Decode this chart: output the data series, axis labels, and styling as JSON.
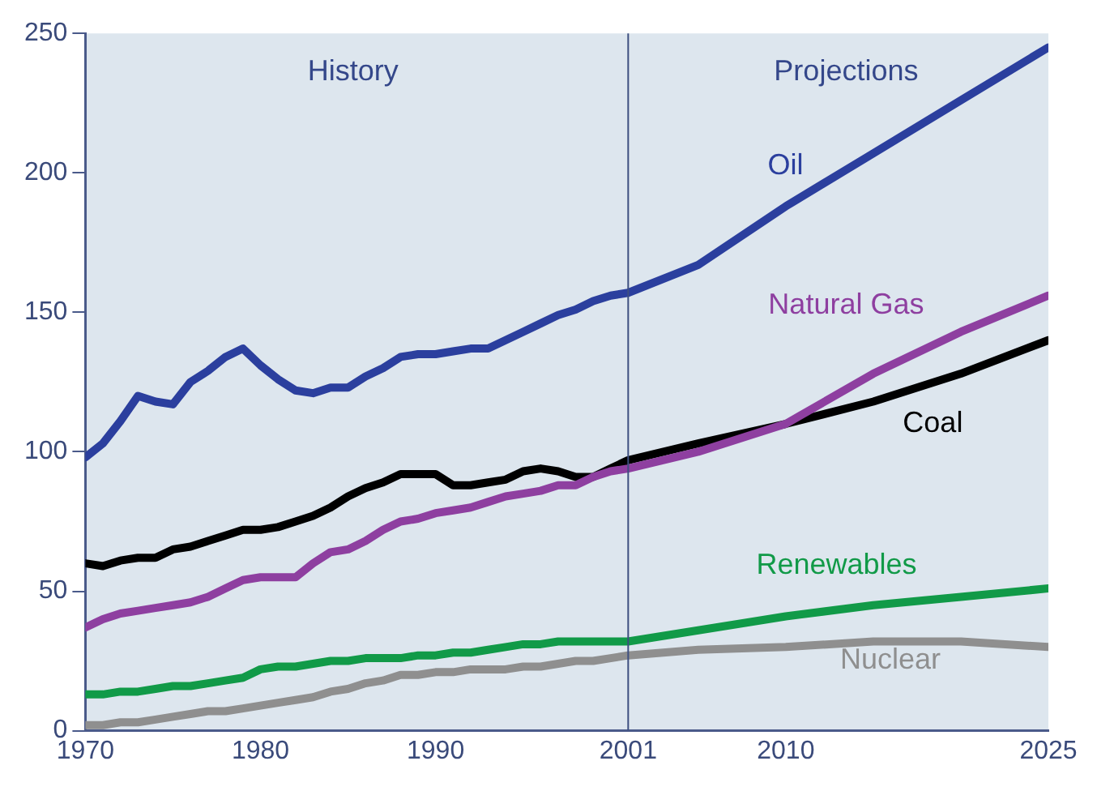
{
  "chart_data": {
    "type": "line",
    "x": [
      1970,
      1971,
      1972,
      1973,
      1974,
      1975,
      1976,
      1977,
      1978,
      1979,
      1980,
      1981,
      1982,
      1983,
      1984,
      1985,
      1986,
      1987,
      1988,
      1989,
      1990,
      1991,
      1992,
      1993,
      1994,
      1995,
      1996,
      1997,
      1998,
      1999,
      2000,
      2001,
      2005,
      2010,
      2015,
      2020,
      2025
    ],
    "series": [
      {
        "name": "Oil",
        "color": "#2b3f9e",
        "values": [
          98,
          103,
          111,
          120,
          118,
          117,
          125,
          129,
          134,
          137,
          131,
          126,
          122,
          121,
          123,
          123,
          127,
          130,
          134,
          135,
          135,
          136,
          137,
          137,
          140,
          143,
          146,
          149,
          151,
          154,
          156,
          157,
          167,
          188,
          207,
          226,
          245
        ]
      },
      {
        "name": "Natural Gas",
        "color": "#8e3fa0",
        "values": [
          37,
          40,
          42,
          43,
          44,
          45,
          46,
          48,
          51,
          54,
          55,
          55,
          55,
          60,
          64,
          65,
          68,
          72,
          75,
          76,
          78,
          79,
          80,
          82,
          84,
          85,
          86,
          88,
          88,
          91,
          93,
          94,
          100,
          110,
          128,
          143,
          156
        ]
      },
      {
        "name": "Coal",
        "color": "#000000",
        "values": [
          60,
          59,
          61,
          62,
          62,
          65,
          66,
          68,
          70,
          72,
          72,
          73,
          75,
          77,
          80,
          84,
          87,
          89,
          92,
          92,
          92,
          88,
          88,
          89,
          90,
          93,
          94,
          93,
          91,
          91,
          94,
          97,
          103,
          110,
          118,
          128,
          140
        ]
      },
      {
        "name": "Renewables",
        "color": "#119a48",
        "values": [
          13,
          13,
          14,
          14,
          15,
          16,
          16,
          17,
          18,
          19,
          22,
          23,
          23,
          24,
          25,
          25,
          26,
          26,
          26,
          27,
          27,
          28,
          28,
          29,
          30,
          31,
          31,
          32,
          32,
          32,
          32,
          32,
          36,
          41,
          45,
          48,
          51
        ]
      },
      {
        "name": "Nuclear",
        "color": "#8f8f8f",
        "values": [
          2,
          2,
          3,
          3,
          4,
          5,
          6,
          7,
          7,
          8,
          9,
          10,
          11,
          12,
          14,
          15,
          17,
          18,
          20,
          20,
          21,
          21,
          22,
          22,
          22,
          23,
          23,
          24,
          25,
          25,
          26,
          27,
          29,
          30,
          32,
          32,
          30
        ]
      }
    ],
    "xlim": [
      1970,
      2025
    ],
    "xticks": [
      1970,
      1980,
      1990,
      2001,
      2010,
      2025
    ],
    "ylim": [
      0,
      250
    ],
    "yticks": [
      0,
      50,
      100,
      150,
      200,
      250
    ],
    "ref_lines": [
      {
        "axis": "x",
        "value": 2001,
        "color": "#3d4f80"
      }
    ],
    "annotations": [
      "History",
      "Projections"
    ],
    "grid": false,
    "legend": false,
    "marker": "none",
    "line_style": "solid"
  }
}
